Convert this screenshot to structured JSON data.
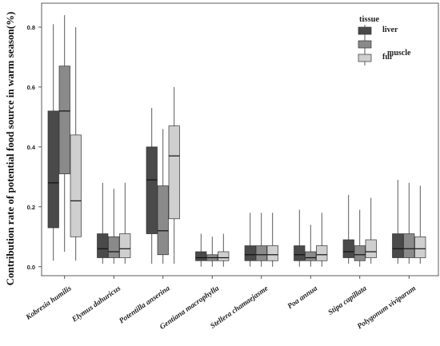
{
  "chart_data": {
    "type": "boxplot",
    "ylabel": "Contribution rate of potential food source in warm season(%)",
    "xlabel": "",
    "ylim": [
      -0.03,
      0.88
    ],
    "yticks": [
      "0.0",
      "0.2",
      "0.4",
      "0.6",
      "0.8"
    ],
    "ytick_values": [
      0.0,
      0.2,
      0.4,
      0.6,
      0.8
    ],
    "grid": false,
    "legend": {
      "title": "tissue",
      "placement": "top-right"
    },
    "categories": [
      "Kobresia humilis",
      "Elymus dahuricus",
      "Potentilla anserina",
      "Gentiana macrophylla",
      "Stellera chamaejasme",
      "Poa annua",
      "Stipa capillata",
      "Polygonum viviparum"
    ],
    "series": [
      {
        "name": "liver",
        "color": "#4a4a4a",
        "boxes": [
          {
            "min": 0.02,
            "q1": 0.13,
            "median": 0.28,
            "q3": 0.52,
            "max": 0.81
          },
          {
            "min": 0.01,
            "q1": 0.03,
            "median": 0.06,
            "q3": 0.11,
            "max": 0.28
          },
          {
            "min": 0.01,
            "q1": 0.11,
            "median": 0.29,
            "q3": 0.4,
            "max": 0.53
          },
          {
            "min": 0.0,
            "q1": 0.02,
            "median": 0.03,
            "q3": 0.05,
            "max": 0.11
          },
          {
            "min": 0.0,
            "q1": 0.02,
            "median": 0.04,
            "q3": 0.07,
            "max": 0.18
          },
          {
            "min": 0.0,
            "q1": 0.02,
            "median": 0.04,
            "q3": 0.07,
            "max": 0.19
          },
          {
            "min": 0.01,
            "q1": 0.03,
            "median": 0.05,
            "q3": 0.09,
            "max": 0.24
          },
          {
            "min": 0.01,
            "q1": 0.03,
            "median": 0.06,
            "q3": 0.11,
            "max": 0.29
          }
        ]
      },
      {
        "name": "muscle",
        "color": "#8a8a8a",
        "boxes": [
          {
            "min": 0.05,
            "q1": 0.31,
            "median": 0.52,
            "q3": 0.67,
            "max": 0.84
          },
          {
            "min": 0.01,
            "q1": 0.03,
            "median": 0.05,
            "q3": 0.1,
            "max": 0.26
          },
          {
            "min": 0.01,
            "q1": 0.04,
            "median": 0.12,
            "q3": 0.27,
            "max": 0.46
          },
          {
            "min": 0.0,
            "q1": 0.02,
            "median": 0.03,
            "q3": 0.04,
            "max": 0.1
          },
          {
            "min": 0.0,
            "q1": 0.02,
            "median": 0.04,
            "q3": 0.07,
            "max": 0.18
          },
          {
            "min": 0.0,
            "q1": 0.02,
            "median": 0.03,
            "q3": 0.05,
            "max": 0.14
          },
          {
            "min": 0.0,
            "q1": 0.02,
            "median": 0.04,
            "q3": 0.07,
            "max": 0.19
          },
          {
            "min": 0.01,
            "q1": 0.03,
            "median": 0.06,
            "q3": 0.11,
            "max": 0.28
          }
        ]
      },
      {
        "name": "fur",
        "color": "#cfcfcf",
        "boxes": [
          {
            "min": 0.02,
            "q1": 0.1,
            "median": 0.22,
            "q3": 0.44,
            "max": 0.8
          },
          {
            "min": 0.01,
            "q1": 0.03,
            "median": 0.06,
            "q3": 0.11,
            "max": 0.28
          },
          {
            "min": 0.01,
            "q1": 0.16,
            "median": 0.37,
            "q3": 0.47,
            "max": 0.6
          },
          {
            "min": 0.0,
            "q1": 0.02,
            "median": 0.03,
            "q3": 0.05,
            "max": 0.11
          },
          {
            "min": 0.0,
            "q1": 0.02,
            "median": 0.04,
            "q3": 0.07,
            "max": 0.18
          },
          {
            "min": 0.0,
            "q1": 0.02,
            "median": 0.04,
            "q3": 0.07,
            "max": 0.18
          },
          {
            "min": 0.01,
            "q1": 0.03,
            "median": 0.05,
            "q3": 0.09,
            "max": 0.23
          },
          {
            "min": 0.01,
            "q1": 0.03,
            "median": 0.06,
            "q3": 0.1,
            "max": 0.27
          }
        ]
      }
    ]
  }
}
